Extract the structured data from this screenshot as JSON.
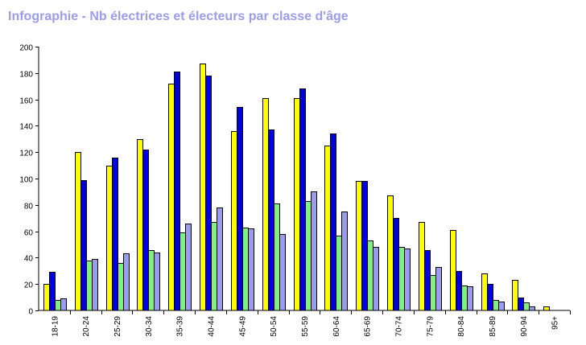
{
  "chart_data": {
    "type": "bar",
    "title": "Infographie - Nb électrices et électeurs par classe d'âge",
    "xlabel": "",
    "ylabel": "",
    "ylim": [
      0,
      200
    ],
    "yticks": [
      0,
      20,
      40,
      60,
      80,
      100,
      120,
      140,
      160,
      180,
      200
    ],
    "grid": false,
    "legend": "none",
    "categories": [
      "18-19",
      "20-24",
      "25-29",
      "30-34",
      "35-39",
      "40-44",
      "45-49",
      "50-54",
      "55-59",
      "60-64",
      "65-69",
      "70-74",
      "75-79",
      "80-84",
      "85-89",
      "90-94",
      "95+"
    ],
    "series": [
      {
        "color": "#ffff00",
        "values": [
          20,
          120,
          110,
          130,
          172,
          187,
          136,
          161,
          161,
          125,
          98,
          87,
          67,
          61,
          28,
          23,
          3
        ]
      },
      {
        "color": "#0000e0",
        "values": [
          29,
          99,
          116,
          122,
          181,
          178,
          154,
          137,
          168,
          134,
          98,
          70,
          46,
          30,
          20,
          10,
          0
        ]
      },
      {
        "color": "#80f080",
        "values": [
          8,
          38,
          36,
          46,
          59,
          67,
          63,
          81,
          83,
          57,
          53,
          48,
          27,
          19,
          8,
          6,
          0
        ]
      },
      {
        "color": "#9c9cec",
        "values": [
          9,
          39,
          43,
          44,
          66,
          78,
          62,
          58,
          90,
          75,
          48,
          47,
          33,
          18,
          7,
          3,
          0
        ]
      }
    ]
  }
}
